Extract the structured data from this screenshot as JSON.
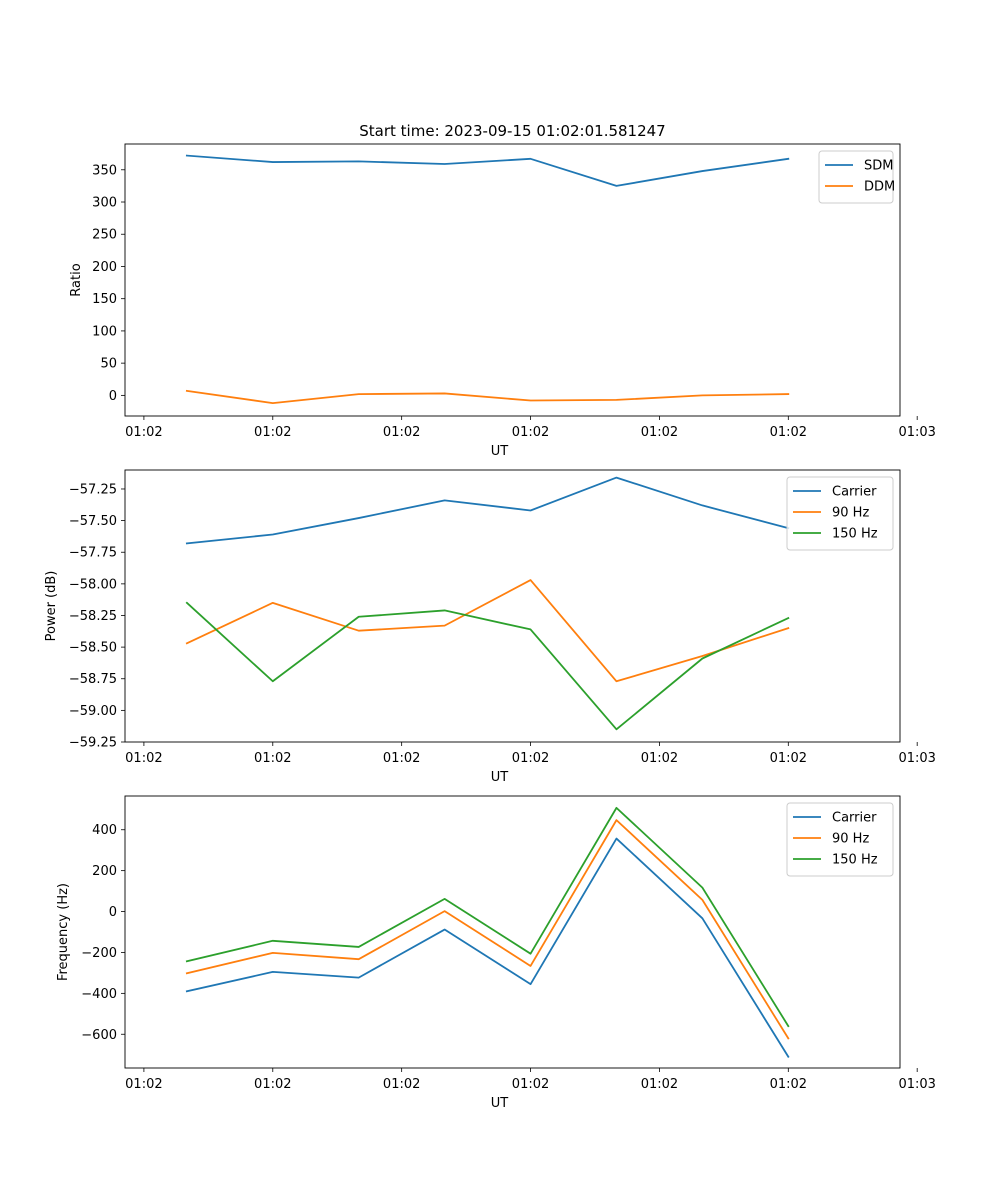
{
  "figure_title": "Start time: 2023-09-15 01:02:01.581247",
  "chart_data": [
    {
      "type": "line",
      "title": "Start time: 2023-09-15 01:02:01.581247",
      "xlabel": "UT",
      "ylabel": "Ratio",
      "x": [
        1,
        2,
        3,
        4,
        5,
        6,
        7,
        8
      ],
      "xlim": [
        0.28,
        9.3
      ],
      "x_ticks": [
        0.5,
        2,
        3.5,
        5,
        6.5,
        8,
        9.5
      ],
      "x_tick_labels": [
        "01:02",
        "01:02",
        "01:02",
        "01:02",
        "01:02",
        "01:02",
        "01:03"
      ],
      "ylim": [
        -32,
        390
      ],
      "y_ticks": [
        0,
        50,
        100,
        150,
        200,
        250,
        300,
        350
      ],
      "y_tick_labels": [
        "0",
        "50",
        "100",
        "150",
        "200",
        "250",
        "300",
        "350"
      ],
      "legend_position": "top-right",
      "series": [
        {
          "name": "SDM",
          "color": "#1f77b4",
          "values": [
            372,
            362,
            363,
            359,
            367,
            325,
            348,
            367
          ]
        },
        {
          "name": "DDM",
          "color": "#ff7f0e",
          "values": [
            7,
            -12,
            2,
            3,
            -8,
            -7,
            0,
            2
          ]
        }
      ]
    },
    {
      "type": "line",
      "title": "",
      "xlabel": "UT",
      "ylabel": "Power (dB)",
      "x": [
        1,
        2,
        3,
        4,
        5,
        6,
        7,
        8
      ],
      "xlim": [
        0.28,
        9.3
      ],
      "x_ticks": [
        0.5,
        2,
        3.5,
        5,
        6.5,
        8,
        9.5
      ],
      "x_tick_labels": [
        "01:02",
        "01:02",
        "01:02",
        "01:02",
        "01:02",
        "01:02",
        "01:03"
      ],
      "ylim": [
        -59.25,
        -57.1
      ],
      "y_ticks": [
        -59.25,
        -59.0,
        -58.75,
        -58.5,
        -58.25,
        -58.0,
        -57.75,
        -57.5,
        -57.25
      ],
      "y_tick_labels": [
        "−59.25",
        "−59.00",
        "−58.75",
        "−58.50",
        "−58.25",
        "−58.00",
        "−57.75",
        "−57.50",
        "−57.25"
      ],
      "legend_position": "top-right",
      "series": [
        {
          "name": "Carrier",
          "color": "#1f77b4",
          "values": [
            -57.68,
            -57.61,
            -57.48,
            -57.34,
            -57.42,
            -57.16,
            -57.38,
            -57.56
          ]
        },
        {
          "name": "90 Hz",
          "color": "#ff7f0e",
          "values": [
            -58.47,
            -58.15,
            -58.37,
            -58.33,
            -57.97,
            -58.77,
            -58.57,
            -58.35
          ]
        },
        {
          "name": "150 Hz",
          "color": "#2ca02c",
          "values": [
            -58.15,
            -58.77,
            -58.26,
            -58.21,
            -58.36,
            -59.15,
            -58.59,
            -58.27
          ]
        }
      ]
    },
    {
      "type": "line",
      "title": "",
      "xlabel": "UT",
      "ylabel": "Frequency (Hz)",
      "x": [
        1,
        2,
        3,
        4,
        5,
        6,
        7,
        8
      ],
      "xlim": [
        0.28,
        9.3
      ],
      "x_ticks": [
        0.5,
        2,
        3.5,
        5,
        6.5,
        8,
        9.5
      ],
      "x_tick_labels": [
        "01:02",
        "01:02",
        "01:02",
        "01:02",
        "01:02",
        "01:02",
        "01:03"
      ],
      "ylim": [
        -765,
        565
      ],
      "y_ticks": [
        -600,
        -400,
        -200,
        0,
        200,
        400
      ],
      "y_tick_labels": [
        "−600",
        "−400",
        "−200",
        "0",
        "200",
        "400"
      ],
      "legend_position": "top-right",
      "series": [
        {
          "name": "Carrier",
          "color": "#1f77b4",
          "values": [
            -390,
            -295,
            -323,
            -88,
            -355,
            357,
            -33,
            -710
          ]
        },
        {
          "name": "90 Hz",
          "color": "#ff7f0e",
          "values": [
            -302,
            -202,
            -233,
            2,
            -266,
            447,
            57,
            -620
          ]
        },
        {
          "name": "150 Hz",
          "color": "#2ca02c",
          "values": [
            -243,
            -143,
            -173,
            62,
            -206,
            507,
            117,
            -560
          ]
        }
      ]
    }
  ]
}
